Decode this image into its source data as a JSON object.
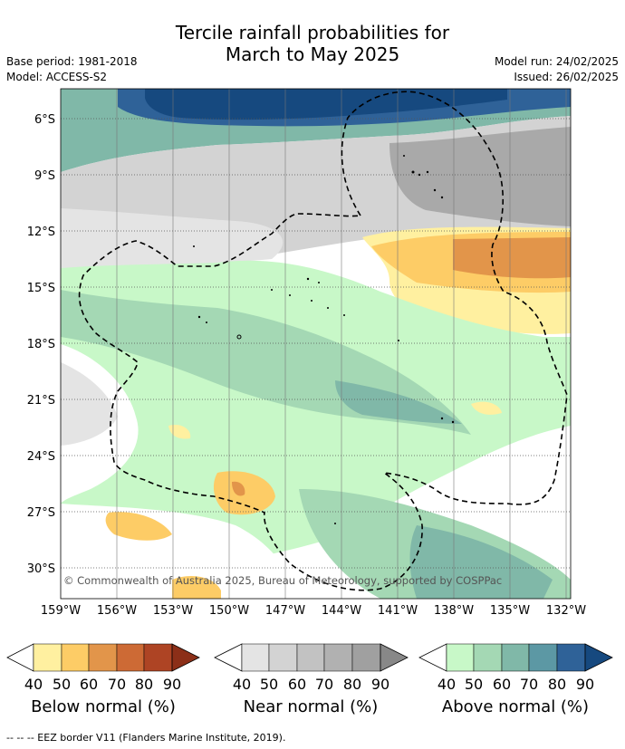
{
  "title_line1": "Tercile rainfall probabilities for",
  "title_line2": "March to May 2025",
  "base_period": "Base period: 1981-2018",
  "model": "Model: ACCESS-S2",
  "model_run": "Model run: 24/02/2025",
  "issued": "Issued: 26/02/2025",
  "lat_labels": [
    "6°S",
    "9°S",
    "12°S",
    "15°S",
    "18°S",
    "21°S",
    "24°S",
    "27°S",
    "30°S"
  ],
  "lon_labels": [
    "159°W",
    "156°W",
    "153°W",
    "150°W",
    "147°W",
    "144°W",
    "141°W",
    "138°W",
    "135°W",
    "132°W"
  ],
  "copyright": "© Commonwealth of Australia 2025, Bureau of Meteorology, supported by COSPPac",
  "legend": {
    "ticks": [
      "40",
      "50",
      "60",
      "70",
      "80",
      "90"
    ],
    "below": {
      "caption": "Below normal (%)",
      "colors": [
        "#fff0a0",
        "#fdcc66",
        "#e2954a",
        "#cd6a35",
        "#ae4424",
        "#8c2f18"
      ]
    },
    "near": {
      "caption": "Near normal (%)",
      "colors": [
        "#e4e4e4",
        "#d3d3d3",
        "#c2c2c2",
        "#b1b1b1",
        "#a0a0a0",
        "#888888"
      ]
    },
    "above": {
      "caption": "Above normal (%)",
      "colors": [
        "#c8f8c8",
        "#a4d8b4",
        "#80b8a8",
        "#5c98a4",
        "#2f6298",
        "#16497f"
      ]
    }
  },
  "footer": "--  --  -- EEZ border V11 (Flanders Marine Institute, 2019)."
}
